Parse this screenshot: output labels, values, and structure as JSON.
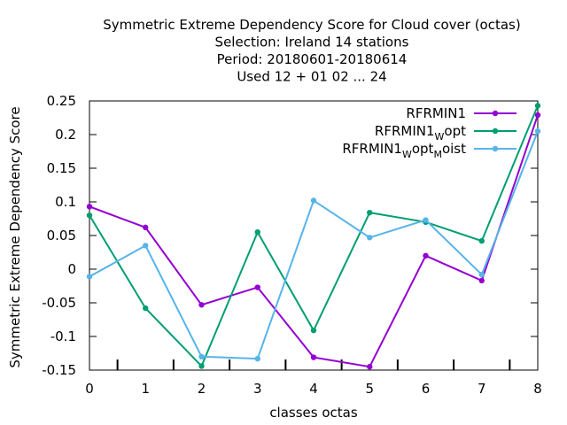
{
  "chart_data": {
    "type": "line",
    "title_lines": [
      "Symmetric Extreme Dependency Score  for Cloud cover (octas)",
      "Selection: Ireland     14 stations",
      "Period: 20180601-20180614",
      "Used  12 + 01 02 ... 24"
    ],
    "xlabel": "classes octas",
    "ylabel": "Symmetric Extreme Dependency Score",
    "xlim": [
      0,
      8
    ],
    "ylim": [
      -0.15,
      0.25
    ],
    "x_ticks": [
      "0",
      "1",
      "2",
      "3",
      "4",
      "5",
      "6",
      "7",
      "8"
    ],
    "y_ticks": [
      "0.25",
      "0.2",
      "0.15",
      "0.1",
      "0.05",
      "0",
      "-0.05",
      "-0.1",
      "-0.15"
    ],
    "grid": false,
    "legend_position": "top-right",
    "x": [
      0,
      1,
      2,
      3,
      4,
      5,
      6,
      7,
      8
    ],
    "series": [
      {
        "name": "RFRMIN1",
        "legend_parts": [
          {
            "text": "RFRMIN1",
            "sub": false
          }
        ],
        "color": "#9400d3",
        "values": [
          0.093,
          0.062,
          -0.053,
          -0.027,
          -0.131,
          -0.145,
          0.02,
          -0.017,
          0.229
        ]
      },
      {
        "name": "RFRMIN1Wopt",
        "legend_parts": [
          {
            "text": "RFRMIN1",
            "sub": false
          },
          {
            "text": "W",
            "sub": true
          },
          {
            "text": "opt",
            "sub": false
          }
        ],
        "color": "#009e73",
        "values": [
          0.08,
          -0.058,
          -0.144,
          0.055,
          -0.091,
          0.084,
          0.07,
          0.042,
          0.243
        ]
      },
      {
        "name": "RFRMIN1WoptMoist",
        "legend_parts": [
          {
            "text": "RFRMIN1",
            "sub": false
          },
          {
            "text": "W",
            "sub": true
          },
          {
            "text": "opt",
            "sub": false
          },
          {
            "text": "M",
            "sub": true
          },
          {
            "text": "oist",
            "sub": false
          }
        ],
        "color": "#56b4e9",
        "values": [
          -0.011,
          0.035,
          -0.13,
          -0.133,
          0.102,
          0.047,
          0.073,
          -0.008,
          0.205
        ]
      }
    ]
  }
}
